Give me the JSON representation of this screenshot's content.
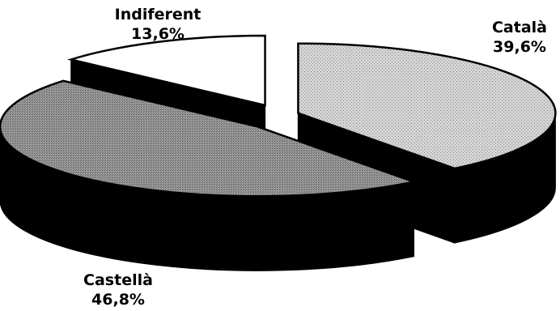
{
  "chart_data": {
    "type": "pie",
    "style": "3d-exploded",
    "title": "",
    "slices": [
      {
        "label": "Català",
        "value": 39.6,
        "value_text": "39,6%",
        "color": "#c8c8c8"
      },
      {
        "label": "Castellà",
        "value": 46.8,
        "value_text": "46,8%",
        "color": "#8f8f8f"
      },
      {
        "label": "Indiferent",
        "value": 13.6,
        "value_text": "13,6%",
        "color": "#ffffff"
      }
    ],
    "side_color": "#000000"
  }
}
